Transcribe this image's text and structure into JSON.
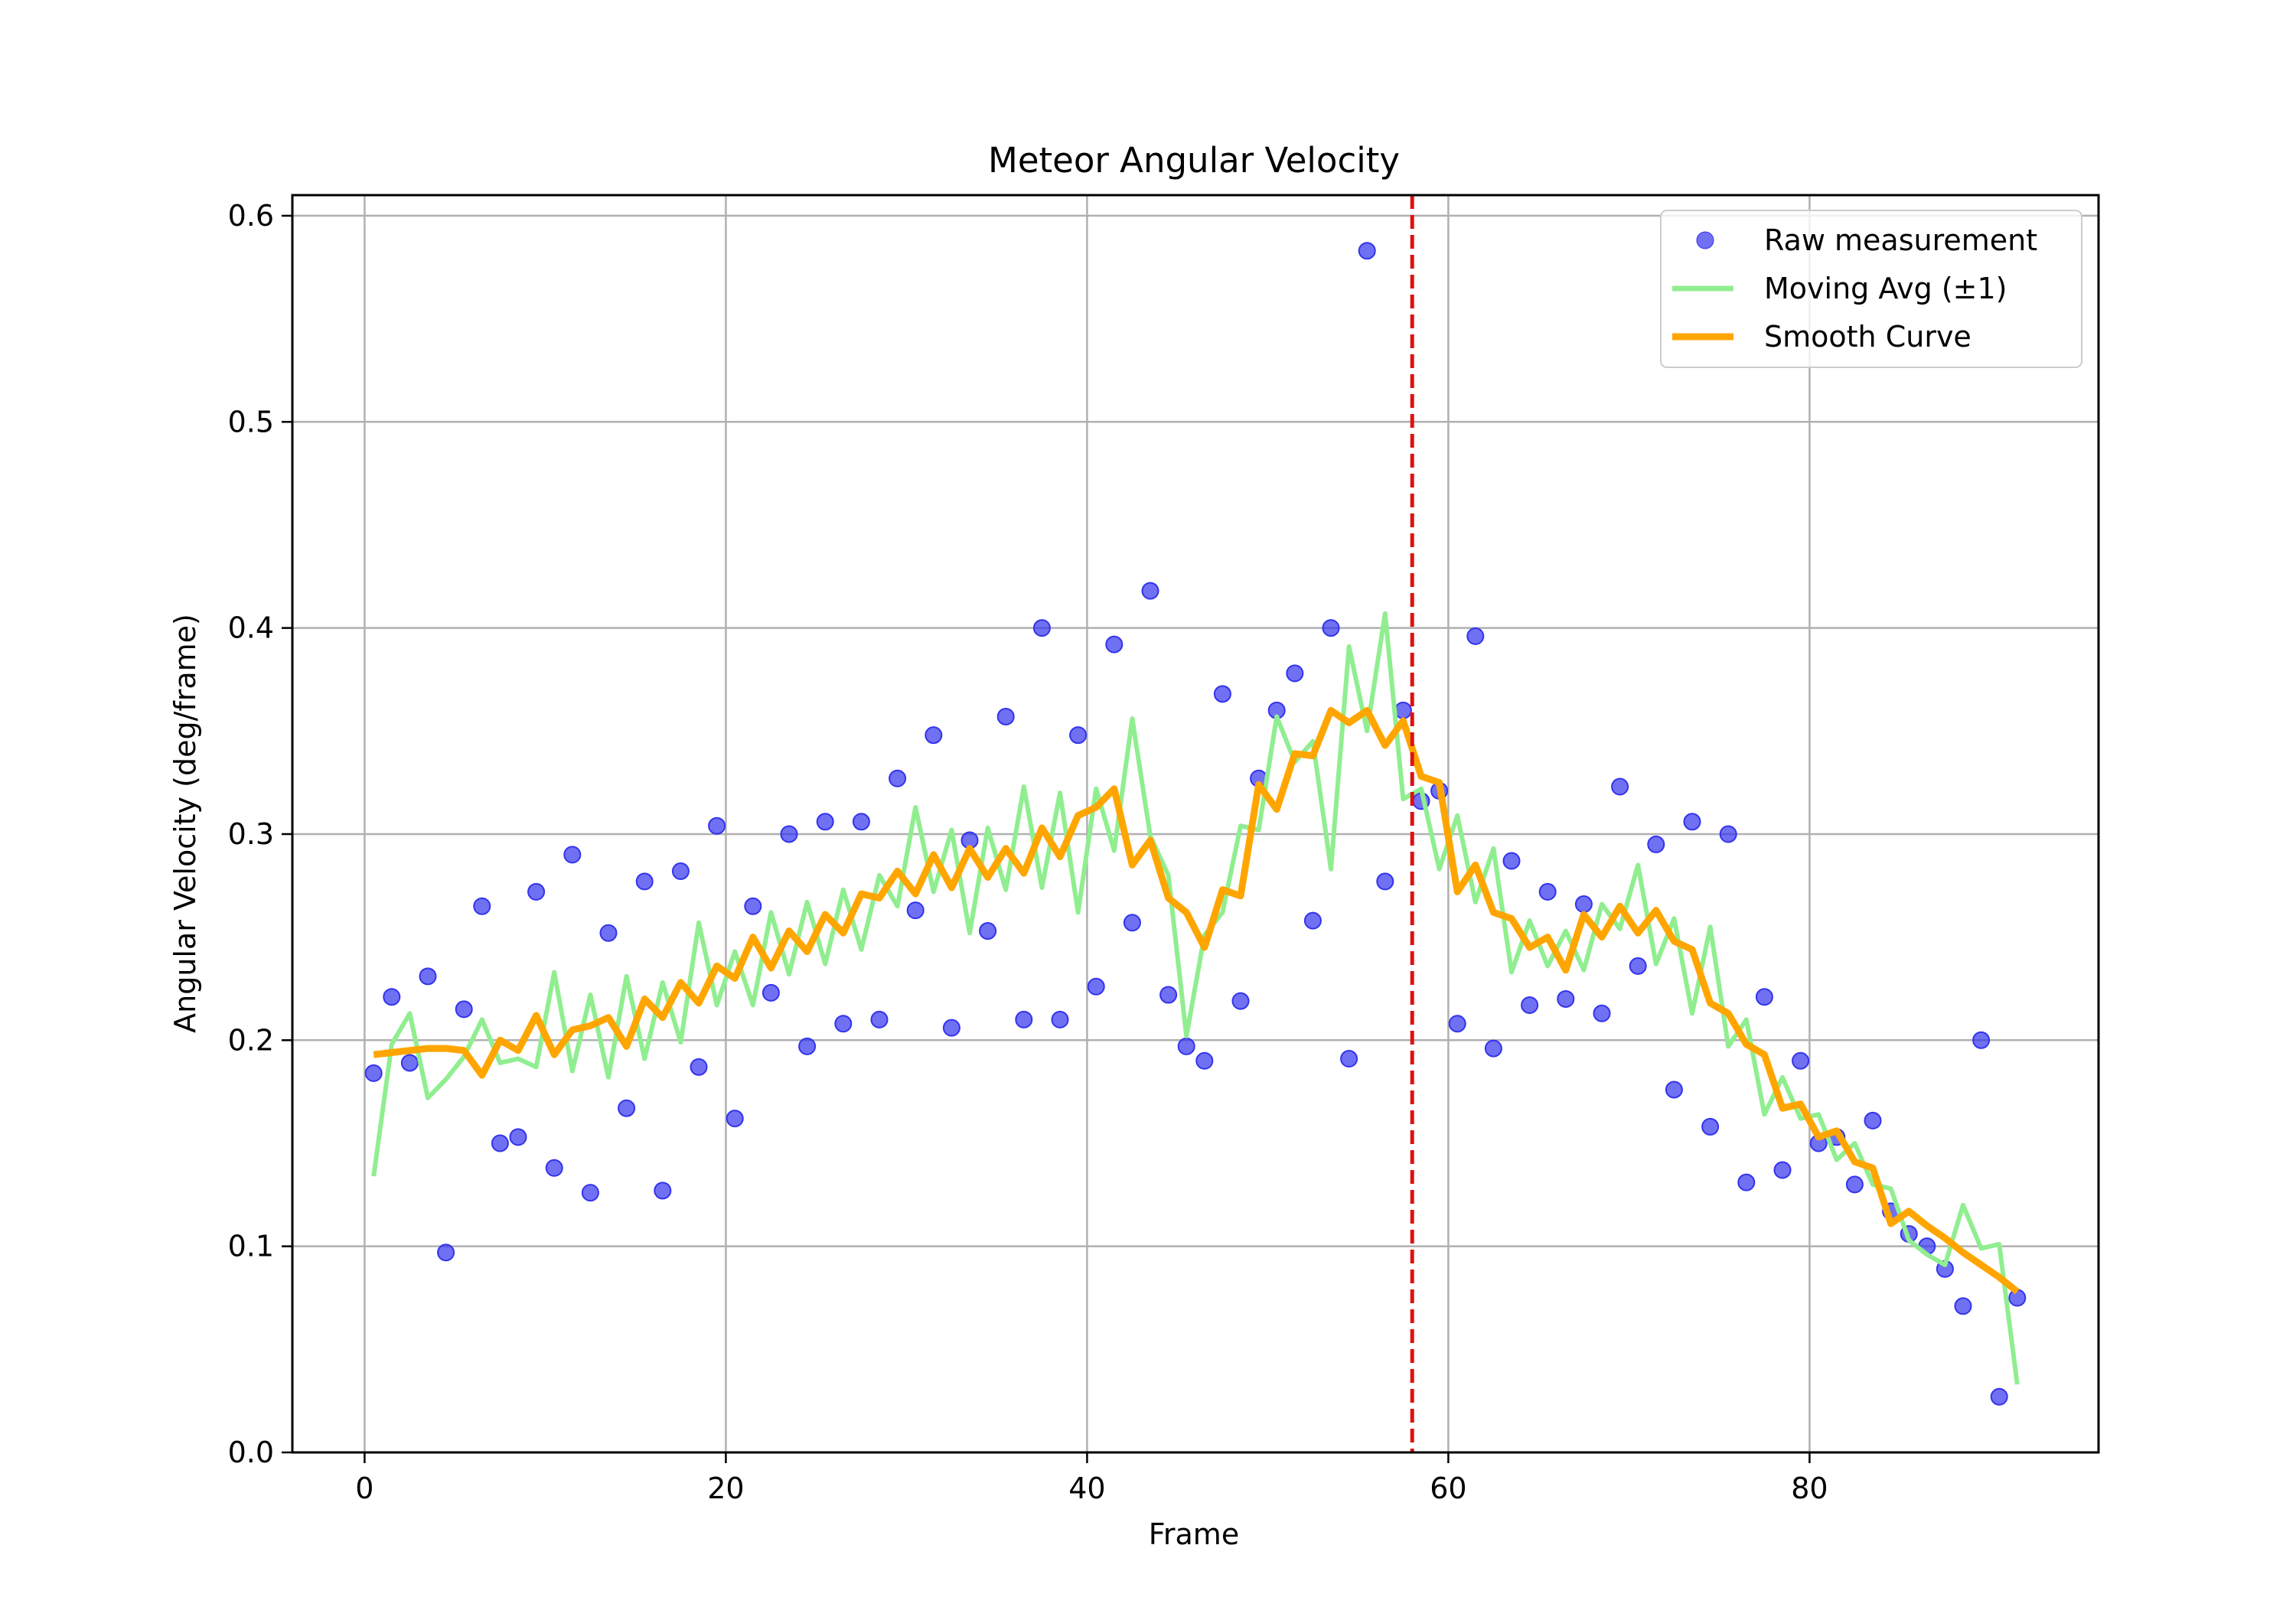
{
  "chart_data": {
    "type": "line",
    "title": "Meteor Angular Velocity",
    "xlabel": "Frame",
    "ylabel": "Angular Velocity (deg/frame)",
    "xlim": [
      -4,
      96
    ],
    "ylim": [
      0.0,
      0.61
    ],
    "xticks": [
      0,
      20,
      40,
      60,
      80
    ],
    "yticks": [
      0.0,
      0.1,
      0.2,
      0.3,
      0.4,
      0.5,
      0.6
    ],
    "ytick_labels": [
      "0.0",
      "0.1",
      "0.2",
      "0.3",
      "0.4",
      "0.5",
      "0.6"
    ],
    "grid": true,
    "legend_position": "top-right",
    "vline": {
      "x": 58,
      "color": "#dd1111",
      "style": "dashed"
    },
    "x": [
      0.5,
      1.5,
      2.5,
      3.5,
      4.5,
      5.5,
      6.5,
      7.5,
      8.5,
      9.5,
      10.5,
      11.5,
      12.5,
      13.5,
      14.5,
      15.5,
      16.5,
      17.5,
      18.5,
      19.5,
      20.5,
      21.5,
      22.5,
      23.5,
      24.5,
      25.5,
      26.5,
      27.5,
      28.5,
      29.5,
      30.5,
      31.5,
      32.5,
      33.5,
      34.5,
      35.5,
      36.5,
      37.5,
      38.5,
      39.5,
      40.5,
      41.5,
      42.5,
      43.5,
      44.5,
      45.5,
      46.5,
      47.5,
      48.5,
      49.5,
      50.5,
      51.5,
      52.5,
      53.5,
      54.5,
      55.5,
      56.5,
      57.5,
      58.5,
      59.5,
      60.5,
      61.5,
      62.5,
      63.5,
      64.5,
      65.5,
      66.5,
      67.5,
      68.5,
      69.5,
      70.5,
      71.5,
      72.5,
      73.5,
      74.5,
      75.5,
      76.5,
      77.5,
      78.5,
      79.5,
      80.5,
      81.5,
      82.5,
      83.5,
      84.5,
      85.5,
      86.5,
      87.5,
      88.5,
      89.5,
      90.5,
      91.5
    ],
    "series": [
      {
        "name": "Raw measurement",
        "kind": "scatter",
        "color": "#3333ee",
        "values": [
          0.184,
          0.221,
          0.189,
          0.231,
          0.097,
          0.215,
          0.265,
          0.15,
          0.153,
          0.272,
          0.138,
          0.29,
          0.126,
          0.252,
          0.167,
          0.277,
          0.127,
          0.282,
          0.187,
          0.304,
          0.162,
          0.265,
          0.223,
          0.3,
          0.197,
          0.306,
          0.208,
          0.306,
          0.21,
          0.327,
          0.263,
          0.348,
          0.206,
          0.297,
          0.253,
          0.357,
          0.21,
          0.4,
          0.21,
          0.348,
          0.226,
          0.392,
          0.257,
          0.418,
          0.222,
          0.197,
          0.19,
          0.368,
          0.219,
          0.327,
          0.36,
          0.378,
          0.258,
          0.4,
          0.191,
          0.583,
          0.277,
          0.36,
          0.316,
          0.321,
          0.208,
          0.396,
          0.196,
          0.287,
          0.217,
          0.272,
          0.22,
          0.266,
          0.213,
          0.323,
          0.236,
          0.295,
          0.176,
          0.306,
          0.158,
          0.3,
          0.131,
          0.221,
          0.137,
          0.19,
          0.15,
          0.153,
          0.13,
          0.161,
          0.117,
          0.106,
          0.1,
          0.089,
          0.071,
          0.2,
          0.027,
          0.075
        ]
      },
      {
        "name": "Moving Avg (±1)",
        "kind": "line",
        "color": "#90ee90",
        "values": [
          0.134,
          0.198,
          0.213,
          0.172,
          0.181,
          0.192,
          0.21,
          0.189,
          0.191,
          0.187,
          0.233,
          0.185,
          0.222,
          0.182,
          0.231,
          0.191,
          0.228,
          0.199,
          0.257,
          0.217,
          0.243,
          0.217,
          0.262,
          0.232,
          0.267,
          0.237,
          0.273,
          0.244,
          0.28,
          0.265,
          0.313,
          0.272,
          0.302,
          0.252,
          0.303,
          0.273,
          0.323,
          0.274,
          0.32,
          0.262,
          0.322,
          0.292,
          0.356,
          0.299,
          0.28,
          0.202,
          0.251,
          0.262,
          0.304,
          0.302,
          0.357,
          0.335,
          0.345,
          0.283,
          0.391,
          0.35,
          0.407,
          0.317,
          0.322,
          0.283,
          0.309,
          0.267,
          0.293,
          0.233,
          0.258,
          0.236,
          0.253,
          0.234,
          0.266,
          0.254,
          0.285,
          0.237,
          0.259,
          0.213,
          0.255,
          0.197,
          0.21,
          0.164,
          0.182,
          0.162,
          0.164,
          0.142,
          0.15,
          0.13,
          0.128,
          0.103,
          0.096,
          0.091,
          0.12,
          0.099,
          0.101,
          0.033
        ]
      },
      {
        "name": "Smooth Curve",
        "kind": "line",
        "color": "#ffa500",
        "values": [
          0.193,
          0.194,
          0.195,
          0.196,
          0.196,
          0.195,
          0.183,
          0.2,
          0.195,
          0.212,
          0.193,
          0.205,
          0.207,
          0.211,
          0.197,
          0.22,
          0.211,
          0.228,
          0.218,
          0.236,
          0.23,
          0.25,
          0.235,
          0.253,
          0.243,
          0.261,
          0.252,
          0.271,
          0.269,
          0.282,
          0.271,
          0.29,
          0.274,
          0.293,
          0.279,
          0.293,
          0.281,
          0.303,
          0.289,
          0.309,
          0.313,
          0.322,
          0.285,
          0.297,
          0.269,
          0.262,
          0.245,
          0.273,
          0.27,
          0.324,
          0.312,
          0.339,
          0.338,
          0.36,
          0.354,
          0.36,
          0.343,
          0.355,
          0.328,
          0.325,
          0.272,
          0.285,
          0.262,
          0.259,
          0.245,
          0.25,
          0.234,
          0.261,
          0.25,
          0.265,
          0.252,
          0.263,
          0.248,
          0.244,
          0.218,
          0.213,
          0.198,
          0.193,
          0.167,
          0.169,
          0.153,
          0.156,
          0.141,
          0.138,
          0.111,
          0.117,
          0.11,
          0.104,
          0.097,
          0.091,
          0.085,
          0.078
        ]
      }
    ]
  }
}
